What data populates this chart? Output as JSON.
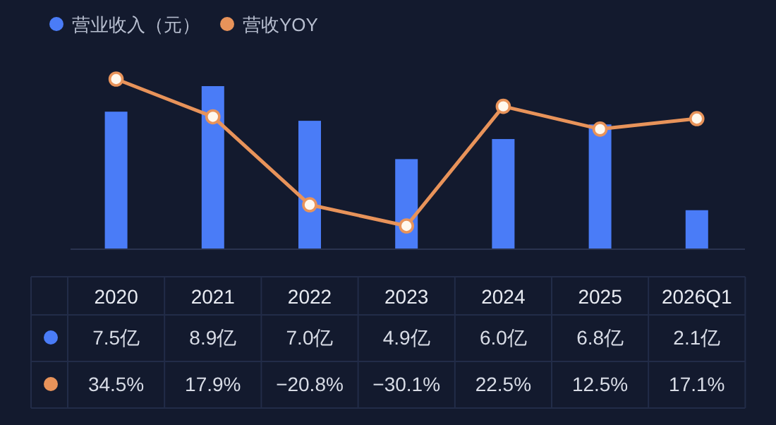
{
  "chart_data": {
    "type": "bar",
    "relative": false,
    "categories": [
      "2020",
      "2021",
      "2022",
      "2023",
      "2024",
      "2025",
      "2026Q1"
    ],
    "legend": "top left",
    "series": [
      {
        "name": "营业收入（元）",
        "color": "#4a7cf7",
        "values": [
          7.5,
          8.9,
          7.0,
          4.9,
          6.0,
          6.8,
          2.1
        ],
        "value_labels": [
          "7.5亿",
          "8.9亿",
          "7.0亿",
          "4.9亿",
          "6.0亿",
          "6.8亿",
          "2.1亿"
        ]
      },
      {
        "name": "营收YOY",
        "type": "line",
        "axis": "y2",
        "color": "#e8935a",
        "marker": "circle",
        "line_style": "solid",
        "values": [
          34.5,
          17.9,
          -20.8,
          -30.1,
          22.5,
          12.5,
          17.1
        ],
        "value_labels": [
          "34.5%",
          "17.9%",
          "−20.8%",
          "−30.1%",
          "22.5%",
          "12.5%",
          "17.1%"
        ]
      }
    ]
  }
}
